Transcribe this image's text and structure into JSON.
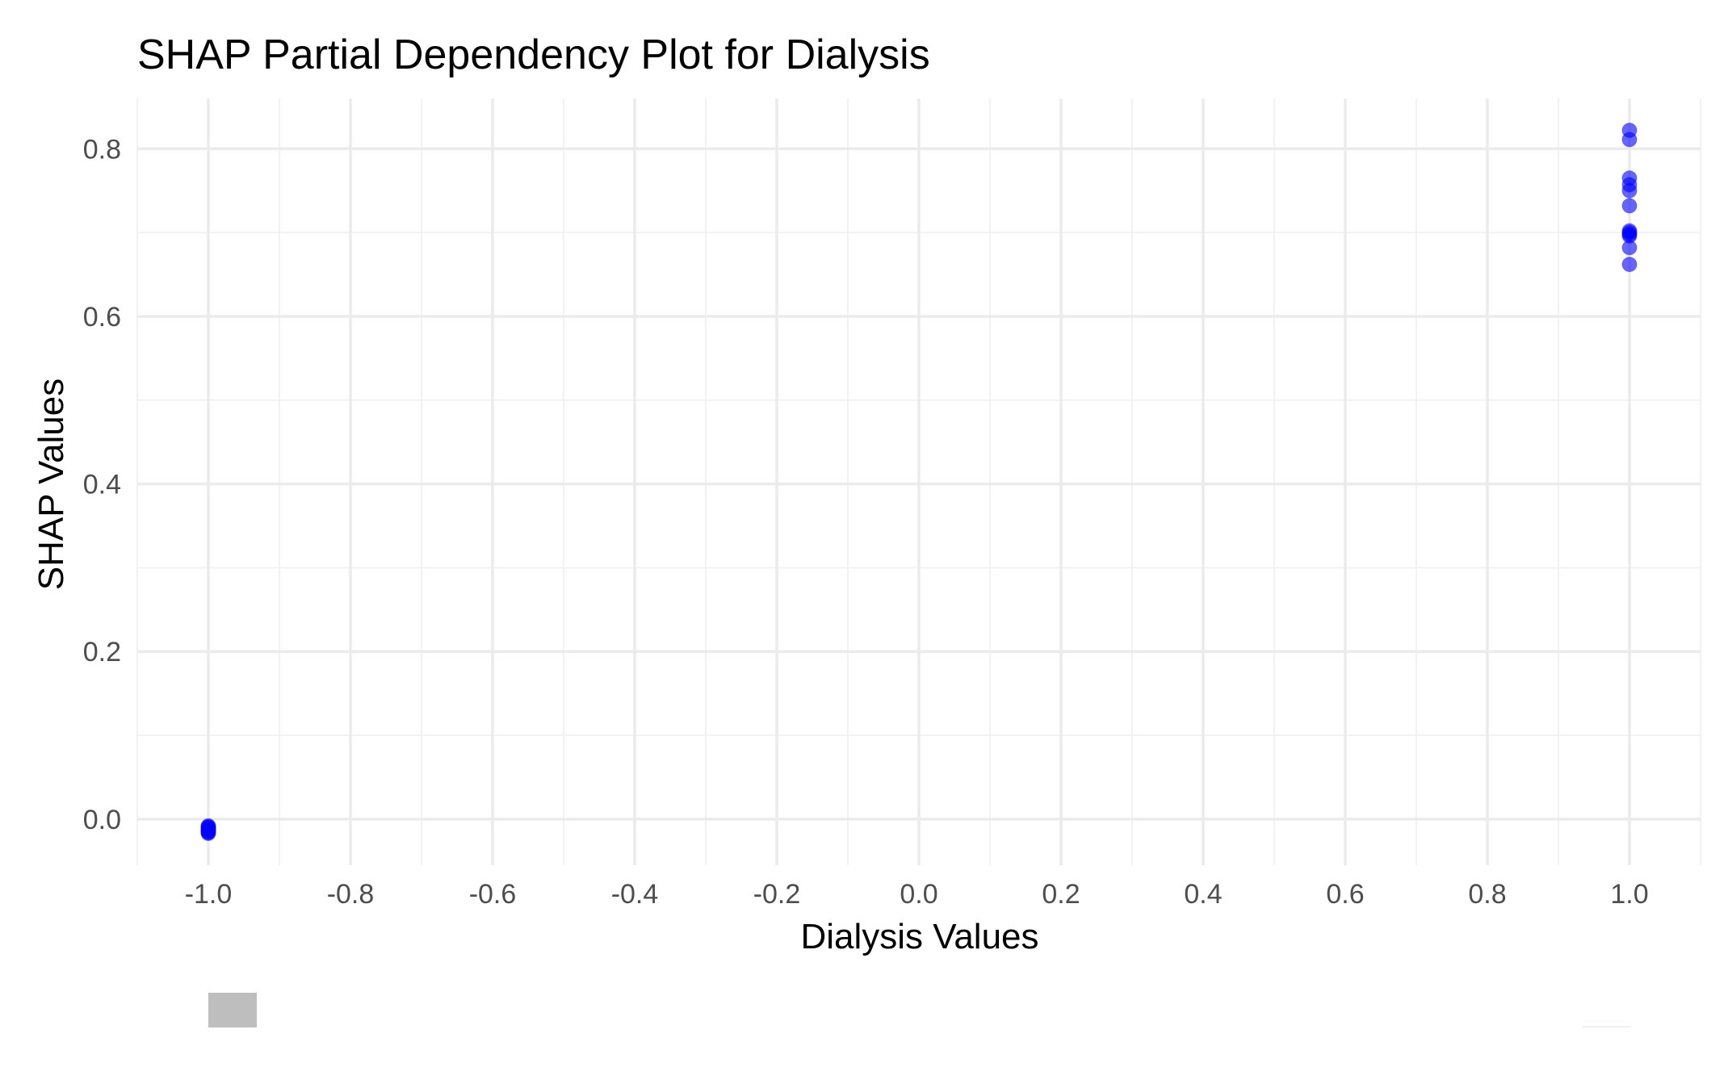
{
  "chart_data": {
    "type": "scatter",
    "title": "SHAP Partial Dependency Plot for Dialysis",
    "xlabel": "Dialysis Values",
    "ylabel": "SHAP Values",
    "xlim": [
      -1.1,
      1.1
    ],
    "ylim": [
      -0.055,
      0.86
    ],
    "x_ticks": [
      -1.0,
      -0.8,
      -0.6,
      -0.4,
      -0.2,
      0.0,
      0.2,
      0.4,
      0.6,
      0.8,
      1.0
    ],
    "x_tick_labels": [
      "-1.0",
      "-0.8",
      "-0.6",
      "-0.4",
      "-0.2",
      "0.0",
      "0.2",
      "0.4",
      "0.6",
      "0.8",
      "1.0"
    ],
    "y_ticks": [
      0.0,
      0.2,
      0.4,
      0.6,
      0.8
    ],
    "y_tick_labels": [
      "0.0",
      "0.2",
      "0.4",
      "0.6",
      "0.8"
    ],
    "grid": true,
    "legend": "none",
    "series": [
      {
        "color": "#0000ff",
        "alpha": 0.6,
        "points": [
          {
            "x": -1.0,
            "y": -0.008
          },
          {
            "x": -1.0,
            "y": -0.01
          },
          {
            "x": -1.0,
            "y": -0.012
          },
          {
            "x": -1.0,
            "y": -0.013
          },
          {
            "x": -1.0,
            "y": -0.014
          },
          {
            "x": -1.0,
            "y": -0.015
          },
          {
            "x": -1.0,
            "y": -0.016
          },
          {
            "x": -1.0,
            "y": -0.017
          },
          {
            "x": -1.0,
            "y": -0.011
          },
          {
            "x": -1.0,
            "y": -0.009
          },
          {
            "x": 1.0,
            "y": 0.822
          },
          {
            "x": 1.0,
            "y": 0.811
          },
          {
            "x": 1.0,
            "y": 0.765
          },
          {
            "x": 1.0,
            "y": 0.757
          },
          {
            "x": 1.0,
            "y": 0.75
          },
          {
            "x": 1.0,
            "y": 0.732
          },
          {
            "x": 1.0,
            "y": 0.702
          },
          {
            "x": 1.0,
            "y": 0.7
          },
          {
            "x": 1.0,
            "y": 0.698
          },
          {
            "x": 1.0,
            "y": 0.696
          },
          {
            "x": 1.0,
            "y": 0.682
          },
          {
            "x": 1.0,
            "y": 0.662
          }
        ]
      }
    ]
  },
  "colors": {
    "background": "#ffffff",
    "grid_major": "#ebebeb",
    "grid_minor": "#f2f2f2",
    "point": "#0000ff",
    "tick_text": "#4d4d4d",
    "title_text": "#000000",
    "artifact_swatch": "#bebebe"
  }
}
